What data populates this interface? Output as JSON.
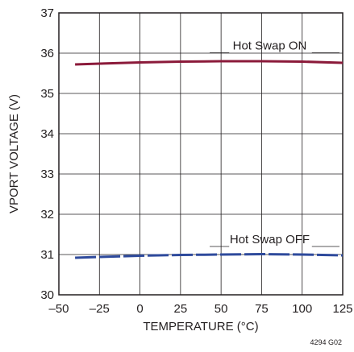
{
  "chart_data": {
    "type": "line",
    "title": "",
    "xlabel": "TEMPERATURE (°C)",
    "ylabel": "VPORT VOLTAGE (V)",
    "xlim": [
      -50,
      125
    ],
    "ylim": [
      30,
      37
    ],
    "x_ticks": [
      -50,
      -25,
      0,
      25,
      50,
      75,
      100,
      125
    ],
    "y_ticks": [
      30,
      31,
      32,
      33,
      34,
      35,
      36,
      37
    ],
    "grid": true,
    "figure_id": "4294 G02",
    "series": [
      {
        "name": "Hot Swap ON",
        "color": "#8b1a3a",
        "line_style": "solid",
        "x": [
          -40,
          -25,
          0,
          25,
          50,
          75,
          100,
          125
        ],
        "y": [
          35.72,
          35.74,
          35.77,
          35.79,
          35.8,
          35.8,
          35.79,
          35.76
        ]
      },
      {
        "name": "Hot Swap OFF",
        "color": "#2e4a9c",
        "line_style": "dashed",
        "x": [
          -40,
          -25,
          0,
          25,
          50,
          75,
          100,
          125
        ],
        "y": [
          30.92,
          30.94,
          30.97,
          30.99,
          31.0,
          31.01,
          31.0,
          30.98
        ]
      }
    ]
  }
}
